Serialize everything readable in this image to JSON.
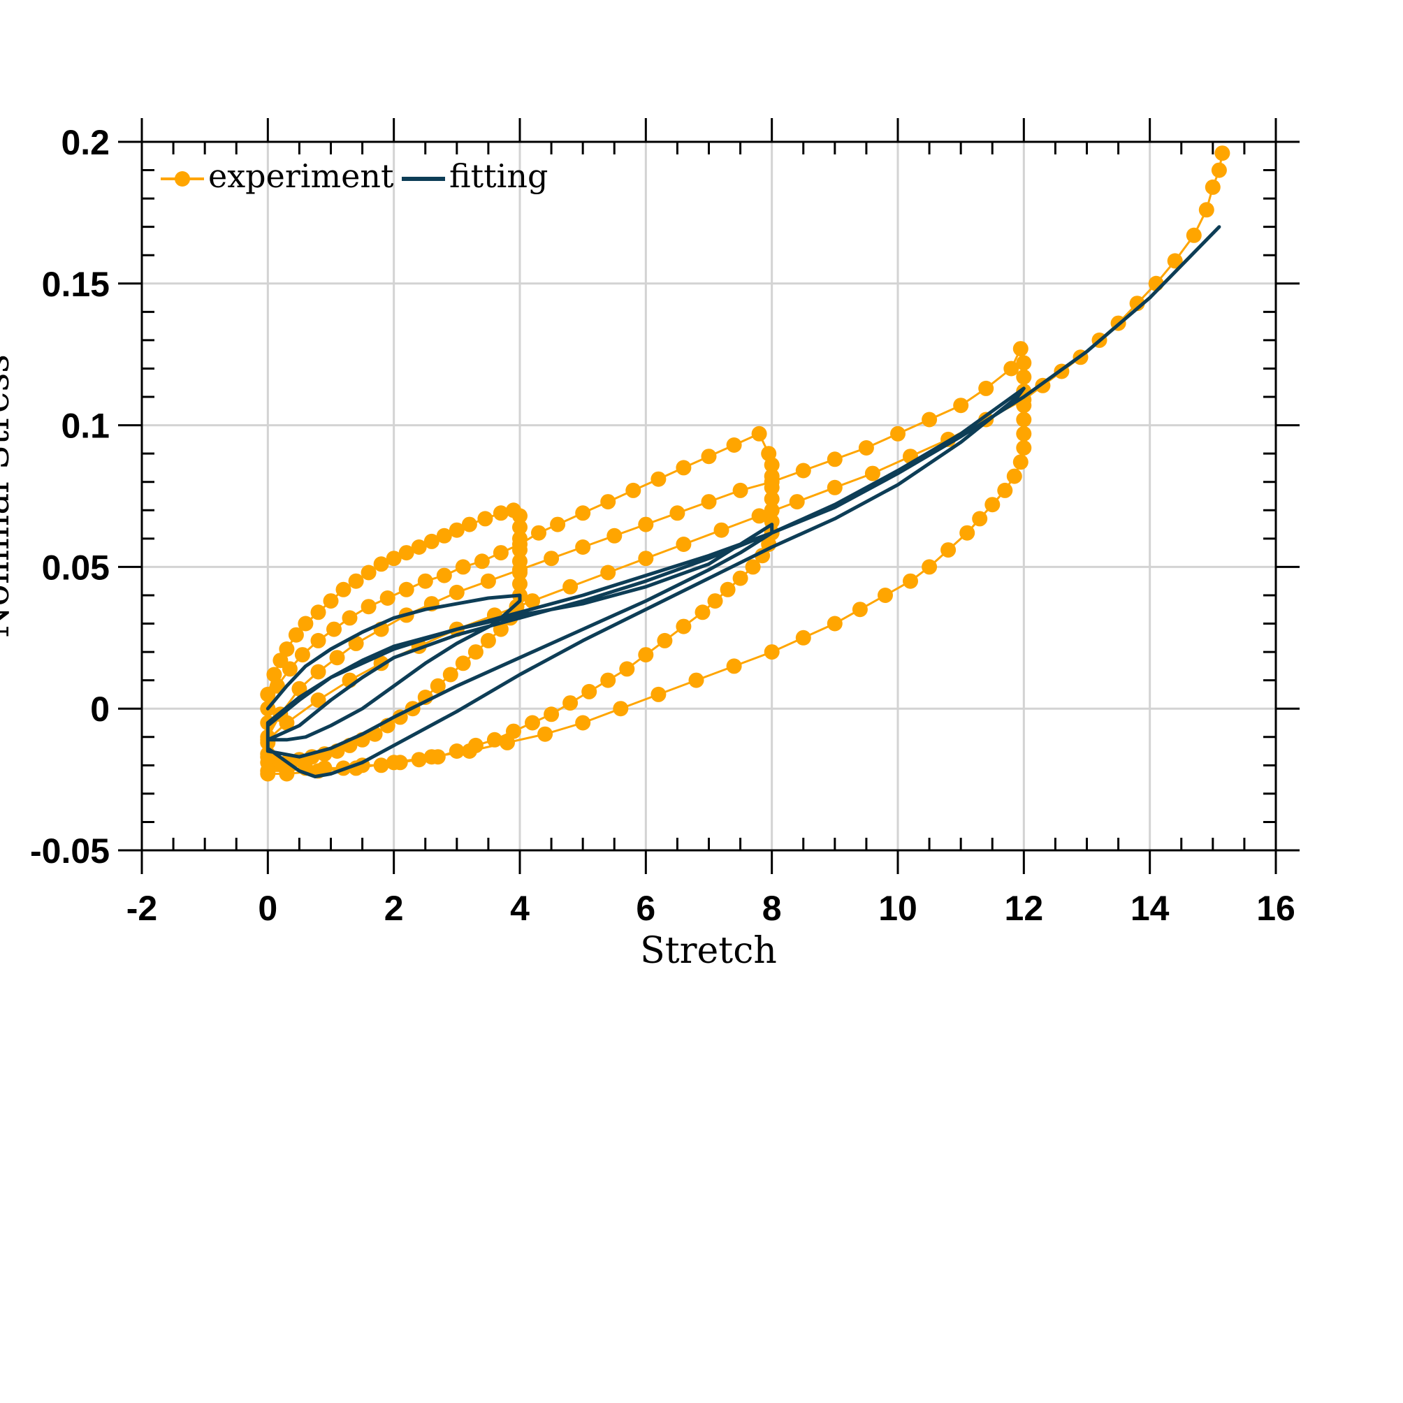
{
  "chart_data": {
    "type": "line",
    "xlabel": "Stretch",
    "ylabel": "Nominal Stress",
    "xlim": [
      -2,
      16
    ],
    "ylim": [
      -0.05,
      0.2
    ],
    "grid": true,
    "legend_position": "top-left",
    "x_ticks": [
      "-2",
      "0",
      "2",
      "4",
      "6",
      "8",
      "10",
      "12",
      "14",
      "16"
    ],
    "y_ticks": [
      "-0.05",
      "0",
      "0.05",
      "0.1",
      "0.15",
      "0.2"
    ],
    "colors": {
      "experiment": "#FFA500",
      "fitting": "#0D3D56",
      "grid": "#d3d3d3"
    },
    "series": [
      {
        "name": "experiment",
        "style": "line-marker",
        "points": [
          [
            0,
            0.005
          ],
          [
            0.1,
            0.012
          ],
          [
            0.2,
            0.017
          ],
          [
            0.3,
            0.021
          ],
          [
            0.45,
            0.026
          ],
          [
            0.6,
            0.03
          ],
          [
            0.8,
            0.034
          ],
          [
            1.0,
            0.038
          ],
          [
            1.2,
            0.042
          ],
          [
            1.4,
            0.045
          ],
          [
            1.6,
            0.048
          ],
          [
            1.8,
            0.051
          ],
          [
            2.0,
            0.053
          ],
          [
            2.2,
            0.055
          ],
          [
            2.4,
            0.057
          ],
          [
            2.6,
            0.059
          ],
          [
            2.8,
            0.061
          ],
          [
            3.0,
            0.063
          ],
          [
            3.2,
            0.065
          ],
          [
            3.45,
            0.067
          ],
          [
            3.7,
            0.069
          ],
          [
            3.9,
            0.07
          ],
          [
            4.0,
            0.068
          ],
          [
            4.0,
            0.064
          ],
          [
            4.0,
            0.06
          ],
          [
            4.0,
            0.056
          ],
          [
            4.0,
            0.052
          ],
          [
            4.0,
            0.048
          ],
          [
            4.0,
            0.044
          ],
          [
            4.0,
            0.04
          ],
          [
            3.95,
            0.036
          ],
          [
            3.85,
            0.032
          ],
          [
            3.7,
            0.028
          ],
          [
            3.5,
            0.024
          ],
          [
            3.3,
            0.02
          ],
          [
            3.1,
            0.016
          ],
          [
            2.9,
            0.012
          ],
          [
            2.7,
            0.008
          ],
          [
            2.5,
            0.004
          ],
          [
            2.3,
            0.0
          ],
          [
            2.1,
            -0.003
          ],
          [
            1.9,
            -0.006
          ],
          [
            1.7,
            -0.009
          ],
          [
            1.5,
            -0.011
          ],
          [
            1.3,
            -0.013
          ],
          [
            1.1,
            -0.015
          ],
          [
            0.9,
            -0.016
          ],
          [
            0.7,
            -0.017
          ],
          [
            0.5,
            -0.018
          ],
          [
            0.3,
            -0.019
          ],
          [
            0.15,
            -0.019
          ],
          [
            0,
            -0.019
          ],
          [
            0,
            -0.012
          ],
          [
            0,
            -0.005
          ],
          [
            0,
            0.0
          ],
          [
            0.15,
            0.008
          ],
          [
            0.35,
            0.014
          ],
          [
            0.55,
            0.019
          ],
          [
            0.8,
            0.024
          ],
          [
            1.05,
            0.028
          ],
          [
            1.3,
            0.032
          ],
          [
            1.6,
            0.036
          ],
          [
            1.9,
            0.039
          ],
          [
            2.2,
            0.042
          ],
          [
            2.5,
            0.045
          ],
          [
            2.8,
            0.047
          ],
          [
            3.1,
            0.05
          ],
          [
            3.4,
            0.052
          ],
          [
            3.7,
            0.055
          ],
          [
            4.0,
            0.058
          ],
          [
            4.3,
            0.062
          ],
          [
            4.6,
            0.065
          ],
          [
            5.0,
            0.069
          ],
          [
            5.4,
            0.073
          ],
          [
            5.8,
            0.077
          ],
          [
            6.2,
            0.081
          ],
          [
            6.6,
            0.085
          ],
          [
            7.0,
            0.089
          ],
          [
            7.4,
            0.093
          ],
          [
            7.8,
            0.097
          ],
          [
            7.95,
            0.09
          ],
          [
            8.0,
            0.086
          ],
          [
            8.0,
            0.082
          ],
          [
            8.0,
            0.078
          ],
          [
            8.0,
            0.074
          ],
          [
            8.0,
            0.07
          ],
          [
            8.0,
            0.066
          ],
          [
            8.0,
            0.062
          ],
          [
            7.95,
            0.058
          ],
          [
            7.85,
            0.054
          ],
          [
            7.7,
            0.05
          ],
          [
            7.5,
            0.046
          ],
          [
            7.3,
            0.042
          ],
          [
            7.1,
            0.038
          ],
          [
            6.9,
            0.034
          ],
          [
            6.6,
            0.029
          ],
          [
            6.3,
            0.024
          ],
          [
            6.0,
            0.019
          ],
          [
            5.7,
            0.014
          ],
          [
            5.4,
            0.01
          ],
          [
            5.1,
            0.006
          ],
          [
            4.8,
            0.002
          ],
          [
            4.5,
            -0.002
          ],
          [
            4.2,
            -0.005
          ],
          [
            3.9,
            -0.008
          ],
          [
            3.6,
            -0.011
          ],
          [
            3.3,
            -0.013
          ],
          [
            3.0,
            -0.015
          ],
          [
            2.7,
            -0.017
          ],
          [
            2.4,
            -0.018
          ],
          [
            2.1,
            -0.019
          ],
          [
            1.8,
            -0.02
          ],
          [
            1.5,
            -0.02
          ],
          [
            1.2,
            -0.021
          ],
          [
            0.9,
            -0.021
          ],
          [
            0.6,
            -0.021
          ],
          [
            0.3,
            -0.022
          ],
          [
            0,
            -0.022
          ],
          [
            0,
            -0.016
          ],
          [
            0,
            -0.01
          ],
          [
            0.2,
            -0.002
          ],
          [
            0.5,
            0.007
          ],
          [
            0.8,
            0.013
          ],
          [
            1.1,
            0.018
          ],
          [
            1.4,
            0.023
          ],
          [
            1.8,
            0.028
          ],
          [
            2.2,
            0.033
          ],
          [
            2.6,
            0.037
          ],
          [
            3.0,
            0.041
          ],
          [
            3.5,
            0.045
          ],
          [
            4.0,
            0.049
          ],
          [
            4.5,
            0.053
          ],
          [
            5.0,
            0.057
          ],
          [
            5.5,
            0.061
          ],
          [
            6.0,
            0.065
          ],
          [
            6.5,
            0.069
          ],
          [
            7.0,
            0.073
          ],
          [
            7.5,
            0.077
          ],
          [
            8.0,
            0.08
          ],
          [
            8.5,
            0.084
          ],
          [
            9.0,
            0.088
          ],
          [
            9.5,
            0.092
          ],
          [
            10.0,
            0.097
          ],
          [
            10.5,
            0.102
          ],
          [
            11.0,
            0.107
          ],
          [
            11.4,
            0.113
          ],
          [
            11.8,
            0.12
          ],
          [
            11.95,
            0.127
          ],
          [
            12.0,
            0.122
          ],
          [
            12.0,
            0.117
          ],
          [
            12.0,
            0.112
          ],
          [
            12.0,
            0.107
          ],
          [
            12.0,
            0.102
          ],
          [
            12.0,
            0.097
          ],
          [
            12.0,
            0.092
          ],
          [
            11.95,
            0.087
          ],
          [
            11.85,
            0.082
          ],
          [
            11.7,
            0.077
          ],
          [
            11.5,
            0.072
          ],
          [
            11.3,
            0.067
          ],
          [
            11.1,
            0.062
          ],
          [
            10.8,
            0.056
          ],
          [
            10.5,
            0.05
          ],
          [
            10.2,
            0.045
          ],
          [
            9.8,
            0.04
          ],
          [
            9.4,
            0.035
          ],
          [
            9.0,
            0.03
          ],
          [
            8.5,
            0.025
          ],
          [
            8.0,
            0.02
          ],
          [
            7.4,
            0.015
          ],
          [
            6.8,
            0.01
          ],
          [
            6.2,
            0.005
          ],
          [
            5.6,
            0.0
          ],
          [
            5.0,
            -0.005
          ],
          [
            4.4,
            -0.009
          ],
          [
            3.8,
            -0.012
          ],
          [
            3.2,
            -0.015
          ],
          [
            2.6,
            -0.017
          ],
          [
            2.0,
            -0.019
          ],
          [
            1.4,
            -0.021
          ],
          [
            0.8,
            -0.022
          ],
          [
            0.3,
            -0.023
          ],
          [
            0,
            -0.023
          ],
          [
            0,
            -0.017
          ],
          [
            0,
            -0.011
          ],
          [
            0.3,
            -0.005
          ],
          [
            0.8,
            0.003
          ],
          [
            1.3,
            0.01
          ],
          [
            1.8,
            0.016
          ],
          [
            2.4,
            0.022
          ],
          [
            3.0,
            0.028
          ],
          [
            3.6,
            0.033
          ],
          [
            4.2,
            0.038
          ],
          [
            4.8,
            0.043
          ],
          [
            5.4,
            0.048
          ],
          [
            6.0,
            0.053
          ],
          [
            6.6,
            0.058
          ],
          [
            7.2,
            0.063
          ],
          [
            7.8,
            0.068
          ],
          [
            8.4,
            0.073
          ],
          [
            9.0,
            0.078
          ],
          [
            9.6,
            0.083
          ],
          [
            10.2,
            0.089
          ],
          [
            10.8,
            0.095
          ],
          [
            11.4,
            0.102
          ],
          [
            12.0,
            0.109
          ],
          [
            12.3,
            0.114
          ],
          [
            12.6,
            0.119
          ],
          [
            12.9,
            0.124
          ],
          [
            13.2,
            0.13
          ],
          [
            13.5,
            0.136
          ],
          [
            13.8,
            0.143
          ],
          [
            14.1,
            0.15
          ],
          [
            14.4,
            0.158
          ],
          [
            14.7,
            0.167
          ],
          [
            14.9,
            0.176
          ],
          [
            15.0,
            0.184
          ],
          [
            15.1,
            0.19
          ],
          [
            15.15,
            0.196
          ]
        ]
      },
      {
        "name": "fitting",
        "style": "line",
        "points": [
          [
            0,
            0.0
          ],
          [
            0.3,
            0.008
          ],
          [
            0.6,
            0.015
          ],
          [
            1.0,
            0.021
          ],
          [
            1.5,
            0.027
          ],
          [
            2.0,
            0.032
          ],
          [
            2.5,
            0.035
          ],
          [
            3.0,
            0.037
          ],
          [
            3.5,
            0.039
          ],
          [
            4.0,
            0.04
          ],
          [
            4.0,
            0.038
          ],
          [
            3.6,
            0.03
          ],
          [
            3.0,
            0.023
          ],
          [
            2.5,
            0.016
          ],
          [
            2.0,
            0.008
          ],
          [
            1.5,
            0.0
          ],
          [
            1.0,
            -0.006
          ],
          [
            0.6,
            -0.01
          ],
          [
            0.3,
            -0.011
          ],
          [
            0,
            -0.011
          ],
          [
            0,
            -0.006
          ],
          [
            0.5,
            0.003
          ],
          [
            1.0,
            0.011
          ],
          [
            1.5,
            0.017
          ],
          [
            2.0,
            0.022
          ],
          [
            3.0,
            0.028
          ],
          [
            4.0,
            0.033
          ],
          [
            5.0,
            0.037
          ],
          [
            6.0,
            0.043
          ],
          [
            7.0,
            0.051
          ],
          [
            8.0,
            0.065
          ],
          [
            8.0,
            0.062
          ],
          [
            7.5,
            0.055
          ],
          [
            7.0,
            0.049
          ],
          [
            6.0,
            0.038
          ],
          [
            5.0,
            0.028
          ],
          [
            4.0,
            0.018
          ],
          [
            3.0,
            0.008
          ],
          [
            2.0,
            -0.003
          ],
          [
            1.5,
            -0.009
          ],
          [
            1.0,
            -0.014
          ],
          [
            0.5,
            -0.017
          ],
          [
            0,
            -0.015
          ],
          [
            0,
            -0.011
          ],
          [
            0.5,
            -0.006
          ],
          [
            1.0,
            0.003
          ],
          [
            1.5,
            0.011
          ],
          [
            2.0,
            0.018
          ],
          [
            3.0,
            0.026
          ],
          [
            4.0,
            0.032
          ],
          [
            5.0,
            0.038
          ],
          [
            6.0,
            0.045
          ],
          [
            7.0,
            0.053
          ],
          [
            8.0,
            0.062
          ],
          [
            9.0,
            0.072
          ],
          [
            10.0,
            0.084
          ],
          [
            11.0,
            0.097
          ],
          [
            12.0,
            0.113
          ],
          [
            11.9,
            0.11
          ],
          [
            11.0,
            0.094
          ],
          [
            10.0,
            0.079
          ],
          [
            9.0,
            0.067
          ],
          [
            8.0,
            0.057
          ],
          [
            7.0,
            0.046
          ],
          [
            6.0,
            0.035
          ],
          [
            5.0,
            0.024
          ],
          [
            4.0,
            0.012
          ],
          [
            3.0,
            -0.001
          ],
          [
            2.0,
            -0.013
          ],
          [
            1.5,
            -0.019
          ],
          [
            1.0,
            -0.023
          ],
          [
            0.75,
            -0.024
          ],
          [
            0.5,
            -0.022
          ],
          [
            0,
            -0.014
          ],
          [
            0,
            -0.005
          ],
          [
            0.5,
            0.004
          ],
          [
            1.0,
            0.011
          ],
          [
            2.0,
            0.021
          ],
          [
            3.0,
            0.028
          ],
          [
            4.0,
            0.034
          ],
          [
            5.0,
            0.04
          ],
          [
            6.0,
            0.047
          ],
          [
            7.0,
            0.054
          ],
          [
            8.0,
            0.062
          ],
          [
            9.0,
            0.071
          ],
          [
            10.0,
            0.083
          ],
          [
            11.0,
            0.096
          ],
          [
            12.0,
            0.11
          ],
          [
            13.0,
            0.126
          ],
          [
            14.0,
            0.145
          ],
          [
            15.1,
            0.17
          ]
        ]
      }
    ]
  }
}
